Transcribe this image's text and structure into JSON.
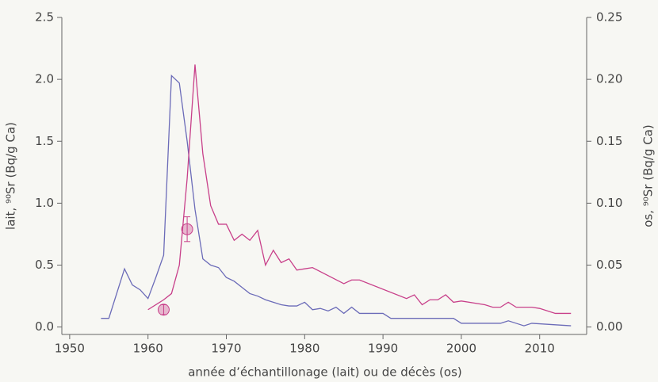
{
  "chart_data": {
    "type": "line",
    "x_label": "année d’échantillonage (lait) ou de décès (os)",
    "y_label": "lait, ⁹⁰Sr (Bq/g Ca)",
    "y2_label": "os, ⁹⁰Sr (Bq/g Ca)",
    "xlim": [
      1949,
      2016
    ],
    "xticks": [
      1950,
      1960,
      1970,
      1980,
      1990,
      2000,
      2010
    ],
    "ylim": [
      -0.06,
      2.5
    ],
    "yticks": [
      {
        "value": 0,
        "label": "0.0"
      },
      0.5,
      {
        "value": 1,
        "label": "1.0"
      },
      1.5,
      {
        "value": 2,
        "label": "2.0"
      },
      2.5
    ],
    "y2lim": [
      -0.006,
      0.25
    ],
    "y2ticks": [
      {
        "value": 0,
        "label": "0.00"
      },
      0.05,
      {
        "value": 0.1,
        "label": "0.10"
      },
      0.15,
      {
        "value": 0.2,
        "label": "0.20"
      },
      0.25
    ],
    "series": [
      {
        "color": "#6b6bb8",
        "x": [
          1954,
          1955,
          1957,
          1958,
          1959,
          1960,
          1961,
          1962,
          1963,
          1964,
          1965,
          1966,
          1967,
          1968,
          1969,
          1970,
          1971,
          1972,
          1973,
          1974,
          1975,
          1976,
          1977,
          1978,
          1979,
          1980,
          1981,
          1982,
          1983,
          1984,
          1985,
          1986,
          1987,
          1988,
          1989,
          1990,
          1991,
          1999,
          2000,
          2004,
          2005,
          2006,
          2007,
          2008,
          2009,
          2014
        ],
        "values": [
          0.07,
          0.07,
          0.47,
          0.34,
          0.3,
          0.23,
          0.4,
          0.58,
          2.03,
          1.97,
          1.5,
          0.95,
          0.55,
          0.5,
          0.48,
          0.4,
          0.37,
          0.32,
          0.27,
          0.25,
          0.22,
          0.2,
          0.18,
          0.17,
          0.17,
          0.2,
          0.14,
          0.15,
          0.13,
          0.16,
          0.11,
          0.16,
          0.11,
          0.11,
          0.11,
          0.11,
          0.07,
          0.07,
          0.03,
          0.03,
          0.03,
          0.05,
          0.03,
          0.01,
          0.03,
          0.01
        ]
      },
      {
        "color": "#c8408a",
        "axis": "y2",
        "x": [
          1960,
          1962,
          1963,
          1964,
          1965,
          1966,
          1967,
          1968,
          1969,
          1970,
          1971,
          1972,
          1973,
          1974,
          1975,
          1976,
          1977,
          1978,
          1979,
          1980,
          1981,
          1985,
          1986,
          1987,
          1993,
          1994,
          1995,
          1996,
          1997,
          1998,
          1999,
          2000,
          2003,
          2004,
          2005,
          2006,
          2007,
          2009,
          2010,
          2012,
          2014
        ],
        "values": [
          0.014,
          0.022,
          0.027,
          0.05,
          0.12,
          0.212,
          0.14,
          0.098,
          0.083,
          0.083,
          0.07,
          0.075,
          0.07,
          0.078,
          0.05,
          0.062,
          0.052,
          0.055,
          0.046,
          0.047,
          0.048,
          0.035,
          0.038,
          0.038,
          0.023,
          0.026,
          0.018,
          0.022,
          0.022,
          0.026,
          0.02,
          0.021,
          0.018,
          0.016,
          0.016,
          0.02,
          0.016,
          0.016,
          0.015,
          0.011,
          0.011
        ]
      },
      {
        "color": "#c8408a",
        "axis": "y2",
        "marker": "circle",
        "x": [
          1962,
          1965
        ],
        "values": [
          0.014,
          0.079
        ],
        "error": [
          0.004,
          0.01
        ]
      }
    ]
  }
}
